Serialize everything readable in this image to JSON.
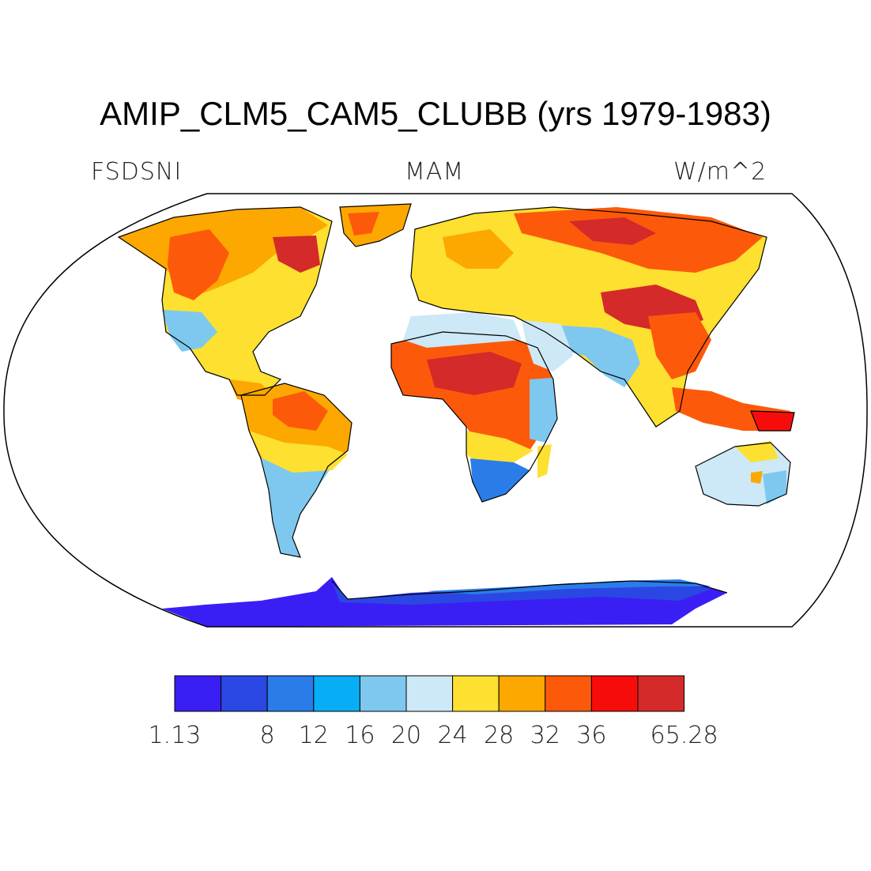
{
  "title": "AMIP_CLM5_CAM5_CLUBB (yrs 1979-1983)",
  "variable": "FSDSNI",
  "season": "MAM",
  "units": "W/m^2",
  "colorbar": {
    "colors": [
      "#3a1ff5",
      "#2b47e3",
      "#2a7de9",
      "#07aef6",
      "#7ec8ef",
      "#cde8f6",
      "#fde030",
      "#fca800",
      "#fc5a0a",
      "#f70c0c",
      "#d42a2a"
    ],
    "labels": [
      {
        "text": "1.13",
        "boundary": 0
      },
      {
        "text": "8",
        "boundary": 2
      },
      {
        "text": "12",
        "boundary": 3
      },
      {
        "text": "16",
        "boundary": 4
      },
      {
        "text": "20",
        "boundary": 5
      },
      {
        "text": "24",
        "boundary": 6
      },
      {
        "text": "28",
        "boundary": 7
      },
      {
        "text": "32",
        "boundary": 8
      },
      {
        "text": "36",
        "boundary": 9
      },
      {
        "text": "65.28",
        "boundary": 11
      }
    ]
  }
}
